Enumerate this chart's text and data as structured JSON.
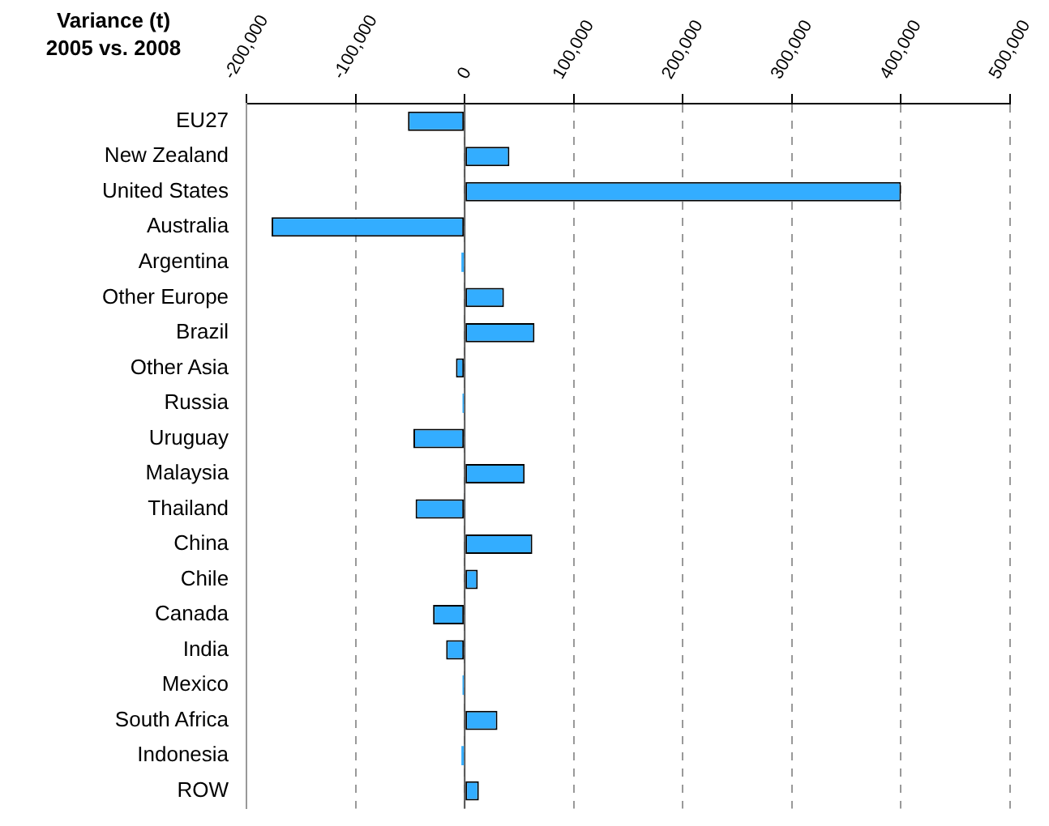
{
  "chart_data": {
    "type": "bar",
    "orientation": "horizontal",
    "title": "Variance (t)\n2005 vs. 2008",
    "categories": [
      "EU27",
      "New Zealand",
      "United States",
      "Australia",
      "Argentina",
      "Other Europe",
      "Brazil",
      "Other Asia",
      "Russia",
      "Uruguay",
      "Malaysia",
      "Thailand",
      "China",
      "Chile",
      "Canada",
      "India",
      "Mexico",
      "South Africa",
      "Indonesia",
      "ROW"
    ],
    "values": [
      -52000,
      41000,
      400000,
      -177000,
      -3000,
      36000,
      64000,
      -8000,
      -2000,
      -47000,
      55000,
      -45000,
      62000,
      12000,
      -29000,
      -17000,
      -2000,
      30000,
      -3000,
      13000
    ],
    "color": "#33adff",
    "xlim": [
      -200000,
      500000
    ],
    "xticks": [
      {
        "value": -200000,
        "label": "-200,000"
      },
      {
        "value": -100000,
        "label": "-100,000"
      },
      0,
      {
        "value": 100000,
        "label": "100,000"
      },
      {
        "value": 200000,
        "label": "200,000"
      },
      {
        "value": 300000,
        "label": "300,000"
      },
      {
        "value": 400000,
        "label": "400,000"
      },
      {
        "value": 500000,
        "label": "500,000"
      }
    ],
    "grid": "x",
    "legend": false
  }
}
